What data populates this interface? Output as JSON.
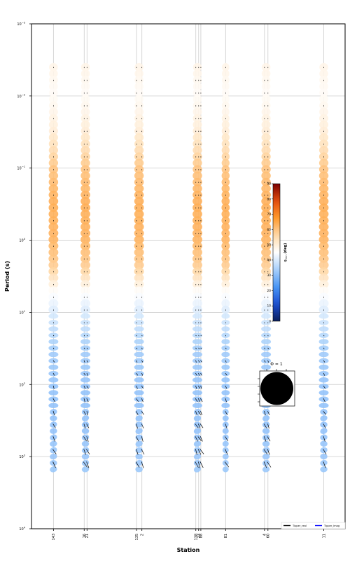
{
  "chart_data": {
    "type": "scatter",
    "subtype": "phase-tensor-pseudosection",
    "xlabel": "Station",
    "ylabel": "Period (s)",
    "y_scale": "log",
    "y_inverted": true,
    "ylim": [
      0.001,
      10000
    ],
    "y_ticks": [
      {
        "value": 0.001,
        "base": "10",
        "exp": "−3"
      },
      {
        "value": 0.01,
        "base": "10",
        "exp": "−2"
      },
      {
        "value": 0.1,
        "base": "10",
        "exp": "−1"
      },
      {
        "value": 1,
        "base": "10",
        "exp": "0"
      },
      {
        "value": 10,
        "base": "10",
        "exp": "1"
      },
      {
        "value": 100,
        "base": "10",
        "exp": "2"
      },
      {
        "value": 1000,
        "base": "10",
        "exp": "3"
      },
      {
        "value": 10000,
        "base": "10",
        "exp": "4"
      }
    ],
    "xlim": [
      0,
      100
    ],
    "stations": [
      {
        "label": "143",
        "x": 7.0
      },
      {
        "label": "16",
        "x": 16.8
      },
      {
        "label": "21",
        "x": 17.7
      },
      {
        "label": "135",
        "x": 33.5
      },
      {
        "label": "2",
        "x": 35.2
      },
      {
        "label": "138",
        "x": 52.4
      },
      {
        "label": "23",
        "x": 53.3
      },
      {
        "label": "88",
        "x": 54.0
      },
      {
        "label": "81",
        "x": 61.9
      },
      {
        "label": "4",
        "x": 74.3
      },
      {
        "label": "60",
        "x": 75.4
      },
      {
        "label": "11",
        "x": 93.2
      }
    ],
    "ellipse_columns_x": [
      7.0,
      17.2,
      34.3,
      52.9,
      61.9,
      74.8,
      93.2
    ],
    "period_range": [
      0.004,
      1500
    ],
    "phase_profile": [
      {
        "period": 0.004,
        "phase_deg": 48
      },
      {
        "period": 0.01,
        "phase_deg": 46
      },
      {
        "period": 0.03,
        "phase_deg": 50
      },
      {
        "period": 0.1,
        "phase_deg": 60
      },
      {
        "period": 0.3,
        "phase_deg": 64
      },
      {
        "period": 1,
        "phase_deg": 63
      },
      {
        "period": 2.5,
        "phase_deg": 58
      },
      {
        "period": 5,
        "phase_deg": 46
      },
      {
        "period": 10,
        "phase_deg": 40
      },
      {
        "period": 30,
        "phase_deg": 33
      },
      {
        "period": 100,
        "phase_deg": 31
      },
      {
        "period": 400,
        "phase_deg": 31
      },
      {
        "period": 1500,
        "phase_deg": 32
      }
    ],
    "colorbar": {
      "label_main": "φ",
      "label_sub": "min",
      "label_unit": " (deg)",
      "min": 0,
      "max": 90,
      "ticks": [
        0,
        10,
        20,
        30,
        40,
        50,
        60,
        70,
        80,
        90
      ],
      "colormap": "blue-white-red",
      "colors": [
        "#0b1f5c",
        "#1d4fd1",
        "#4a96f5",
        "#a8d0fb",
        "#ffffff",
        "#ffd9a8",
        "#ff9a2e",
        "#e34c0c",
        "#7a0000"
      ]
    },
    "scale_ellipse_label": "Φ = 1",
    "legend": {
      "placement": "bottom-right",
      "entries": [
        {
          "label": "Tipper_real",
          "color": "#000000"
        },
        {
          "label": "Tipper_imag",
          "color": "#0000ff"
        }
      ]
    },
    "grid": true
  }
}
